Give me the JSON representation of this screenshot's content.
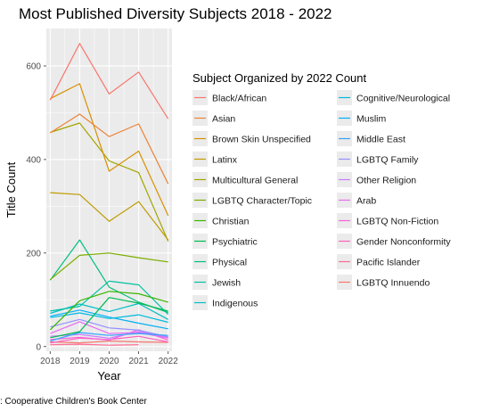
{
  "chart_data": {
    "type": "line",
    "title": "Most Published Diversity Subjects 2018 - 2022",
    "xlabel": "Year",
    "ylabel": "Title Count",
    "x": [
      2018,
      2019,
      2020,
      2021,
      2022
    ],
    "xticks": [
      "2018",
      "2019",
      "2020",
      "2021",
      "2022"
    ],
    "yticks": [
      "0",
      "200",
      "400",
      "600"
    ],
    "xlim": [
      2017.87,
      2022.13
    ],
    "ylim": [
      -10,
      680
    ],
    "grid": true,
    "legend_title": "Subject Organized by 2022 Count",
    "legend_position": "right",
    "caption": ": Cooperative Children's Book Center",
    "series": [
      {
        "name": "Black/African",
        "color": "#F8766D",
        "values": [
          527,
          648,
          540,
          587,
          487
        ]
      },
      {
        "name": "Asian",
        "color": "#EB8335",
        "values": [
          457,
          497,
          449,
          476,
          348
        ]
      },
      {
        "name": "Brown Skin Unspecified",
        "color": "#D89000",
        "values": [
          530,
          562,
          375,
          418,
          280
        ]
      },
      {
        "name": "Latinx",
        "color": "#C09B00",
        "values": [
          329,
          325,
          268,
          310,
          228
        ]
      },
      {
        "name": "Multicultural General",
        "color": "#A3A500",
        "values": [
          458,
          478,
          397,
          372,
          225
        ]
      },
      {
        "name": "LGBTQ Character/Topic",
        "color": "#7CAE00",
        "values": [
          143,
          195,
          200,
          190,
          181
        ]
      },
      {
        "name": "Christian",
        "color": "#39B600",
        "values": [
          36,
          98,
          118,
          113,
          95
        ]
      },
      {
        "name": "Psychiatric",
        "color": "#00BB4E",
        "values": [
          19,
          32,
          105,
          93,
          76
        ]
      },
      {
        "name": "Physical",
        "color": "#00BF7D",
        "values": [
          142,
          228,
          127,
          95,
          73
        ]
      },
      {
        "name": "Jewish",
        "color": "#00C1A3",
        "values": [
          76,
          86,
          140,
          132,
          69
        ]
      },
      {
        "name": "Indigenous",
        "color": "#00BFC4",
        "values": [
          71,
          91,
          75,
          92,
          58
        ]
      },
      {
        "name": "Cognitive/Neurological",
        "color": "#00BAE0",
        "values": [
          62,
          72,
          60,
          68,
          52
        ]
      },
      {
        "name": "Muslim",
        "color": "#00B0F6",
        "values": [
          65,
          78,
          63,
          50,
          38
        ]
      },
      {
        "name": "Middle East",
        "color": "#35A2FF",
        "values": [
          12,
          30,
          24,
          28,
          24
        ]
      },
      {
        "name": "LGBTQ Family",
        "color": "#9590FF",
        "values": [
          42,
          58,
          40,
          35,
          21
        ]
      },
      {
        "name": "Other Religion",
        "color": "#C77CFF",
        "values": [
          22,
          26,
          18,
          32,
          20
        ]
      },
      {
        "name": "Arab",
        "color": "#E76BF3",
        "values": [
          28,
          53,
          28,
          30,
          18
        ]
      },
      {
        "name": "LGBTQ Non-Fiction",
        "color": "#FA62DB",
        "values": [
          15,
          20,
          14,
          36,
          14
        ]
      },
      {
        "name": "Gender Nonconformity",
        "color": "#FF62BC",
        "values": [
          8,
          18,
          15,
          22,
          10
        ]
      },
      {
        "name": "Pacific Islander",
        "color": "#FF6C91",
        "values": [
          4,
          5,
          3,
          4,
          null
        ]
      },
      {
        "name": "LGBTQ Innuendo",
        "color": "#F8766D",
        "values": [
          10,
          8,
          12,
          10,
          9
        ]
      }
    ]
  }
}
